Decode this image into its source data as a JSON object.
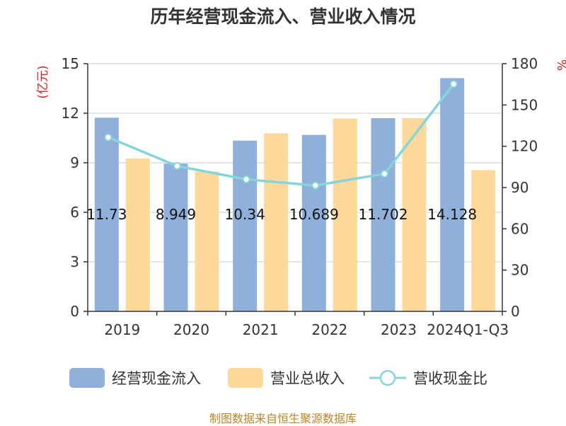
{
  "chart_data": {
    "type": "bar",
    "title": "历年经营现金流入、营业收入情况",
    "categories": [
      "2019",
      "2020",
      "2021",
      "2022",
      "2023",
      "2024Q1-Q3"
    ],
    "left_axis": {
      "unit": "(亿元)",
      "ylim": [
        0,
        15
      ],
      "ticks": [
        0,
        3,
        6,
        9,
        12,
        15
      ]
    },
    "right_axis": {
      "unit": "%",
      "ylim": [
        0,
        180
      ],
      "ticks": [
        0,
        30,
        60,
        90,
        120,
        150,
        180
      ]
    },
    "series": [
      {
        "name": "经营现金流入",
        "type": "bar",
        "axis": "left",
        "color": "#8fb0db",
        "values": [
          11.73,
          8.949,
          10.34,
          10.689,
          11.702,
          14.128
        ],
        "data_labels": [
          "11.73",
          "8.949",
          "10.34",
          "10.689",
          "11.702",
          "14.128"
        ]
      },
      {
        "name": "营业总收入",
        "type": "bar",
        "axis": "left",
        "color": "#fdd89b",
        "values": [
          9.26,
          8.47,
          10.78,
          11.68,
          11.7,
          8.55
        ]
      },
      {
        "name": "营收现金比",
        "type": "line",
        "axis": "right",
        "color": "#86d5d8",
        "values": [
          126.5,
          105.6,
          95.9,
          91.5,
          100.0,
          165.2
        ]
      }
    ],
    "legend_position": "bottom"
  },
  "source_note": "制图数据来自恒生聚源数据库"
}
